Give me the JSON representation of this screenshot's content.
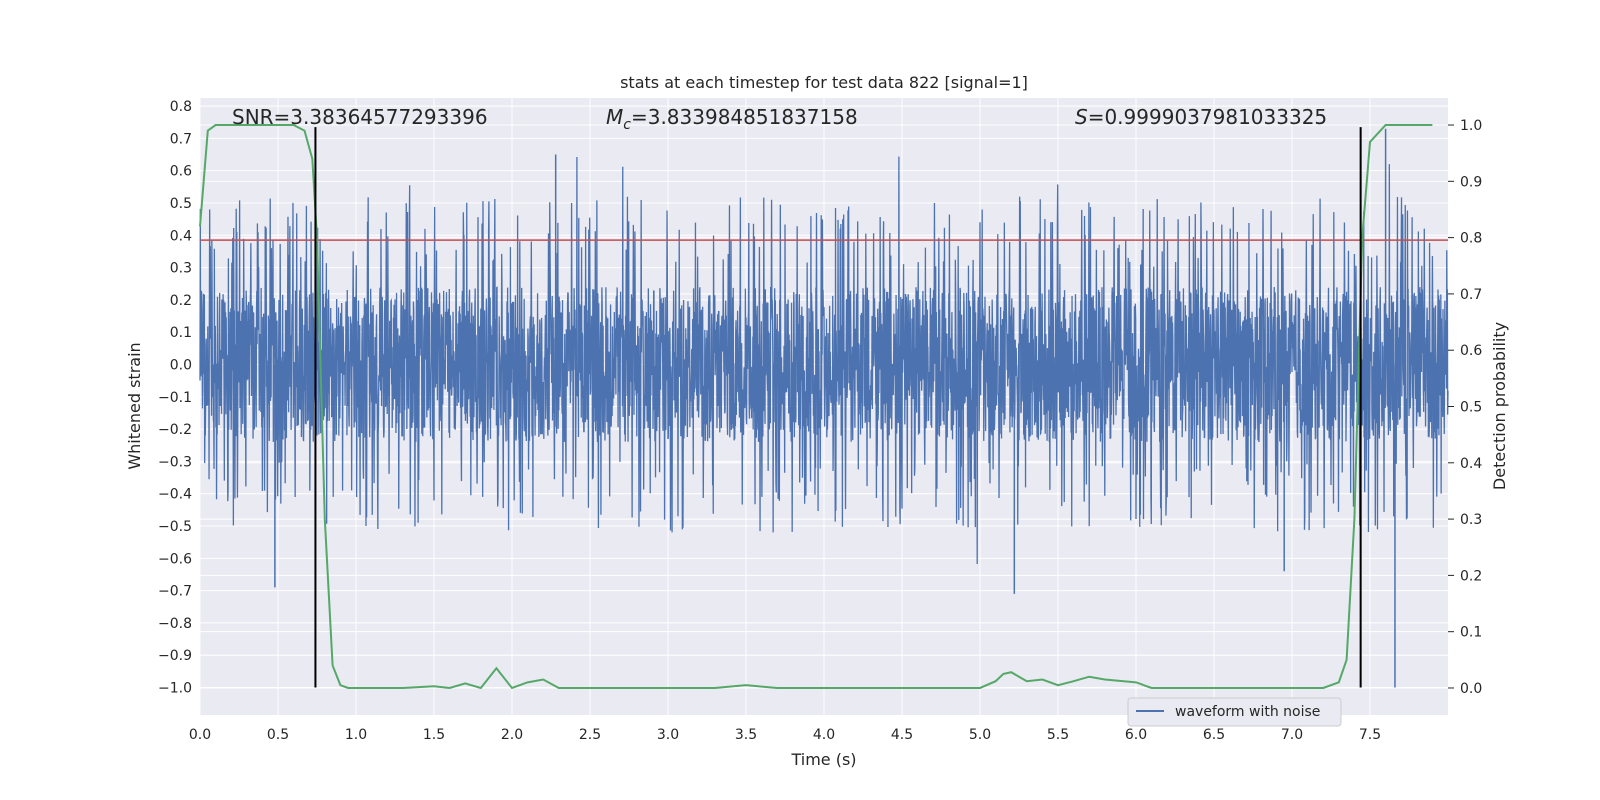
{
  "chart_data": {
    "type": "line",
    "title": "stats at each timestep for test data 822 [signal=1]",
    "xlabel": "Time (s)",
    "ylabel_left": "Whitened strain",
    "ylabel_right": "Detection probability",
    "xlim": [
      0.0,
      8.0
    ],
    "ylim_left": [
      -1.085,
      0.825
    ],
    "ylim_right": [
      -0.048,
      1.048
    ],
    "xticks": [
      "0.0",
      "0.5",
      "1.0",
      "1.5",
      "2.0",
      "2.5",
      "3.0",
      "3.5",
      "4.0",
      "4.5",
      "5.0",
      "5.5",
      "6.0",
      "6.5",
      "7.0",
      "7.5"
    ],
    "yticks_left": [
      "−1.0",
      "−0.9",
      "−0.8",
      "−0.7",
      "−0.6",
      "−0.5",
      "−0.4",
      "−0.3",
      "−0.2",
      "−0.1",
      "0.0",
      "0.1",
      "0.2",
      "0.3",
      "0.4",
      "0.5",
      "0.6",
      "0.7",
      "0.8"
    ],
    "yticks_right": [
      "0.0",
      "0.1",
      "0.2",
      "0.3",
      "0.4",
      "0.5",
      "0.6",
      "0.7",
      "0.8",
      "0.9",
      "1.0"
    ],
    "annotations": {
      "snr": "SNR=3.38364577293396",
      "mc_symbol": "M",
      "mc_sub": "c",
      "mc_value": "=3.833984851837158",
      "s_symbol": "S",
      "s_value": "=0.9999037981033325"
    },
    "threshold_left": 0.385,
    "vlines_x": [
      0.74,
      7.44
    ],
    "vlines_range_left": [
      -1.0,
      0.735
    ],
    "legend": {
      "label": "waveform with noise",
      "position": "lower-right"
    },
    "series": [
      {
        "name": "waveform with noise",
        "axis": "left",
        "kind": "noise",
        "envelope": 0.3,
        "peak_max": 0.73,
        "trough_min": -1.0
      },
      {
        "name": "detection probability",
        "axis": "right",
        "x": [
          0.0,
          0.05,
          0.1,
          0.2,
          0.3,
          0.4,
          0.5,
          0.6,
          0.67,
          0.72,
          0.75,
          0.8,
          0.85,
          0.9,
          0.95,
          1.0,
          1.1,
          1.3,
          1.5,
          1.6,
          1.7,
          1.8,
          1.9,
          2.0,
          2.1,
          2.2,
          2.3,
          2.4,
          2.5,
          2.7,
          3.0,
          3.3,
          3.5,
          3.7,
          4.0,
          4.5,
          5.0,
          5.1,
          5.15,
          5.2,
          5.25,
          5.3,
          5.4,
          5.5,
          5.6,
          5.7,
          5.8,
          6.0,
          6.1,
          6.2,
          6.5,
          7.0,
          7.2,
          7.3,
          7.35,
          7.4,
          7.45,
          7.5,
          7.6,
          7.7,
          7.8,
          7.9
        ],
        "y": [
          0.82,
          0.99,
          1.0,
          1.0,
          1.0,
          1.0,
          1.0,
          1.0,
          0.99,
          0.94,
          0.8,
          0.3,
          0.04,
          0.005,
          0.0,
          0.0,
          0.0,
          0.0,
          0.003,
          0.0,
          0.008,
          0.0,
          0.035,
          0.0,
          0.01,
          0.015,
          0.0,
          0.0,
          0.0,
          0.0,
          0.0,
          0.0,
          0.005,
          0.0,
          0.0,
          0.0,
          0.0,
          0.012,
          0.025,
          0.028,
          0.02,
          0.012,
          0.015,
          0.005,
          0.012,
          0.02,
          0.015,
          0.01,
          0.0,
          0.0,
          0.0,
          0.0,
          0.0,
          0.01,
          0.05,
          0.3,
          0.8,
          0.97,
          1.0,
          1.0,
          1.0,
          1.0
        ]
      }
    ]
  }
}
